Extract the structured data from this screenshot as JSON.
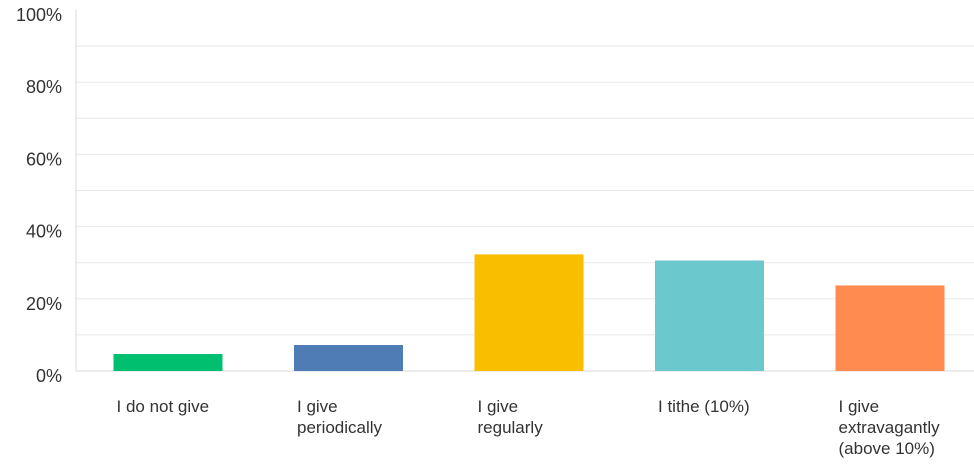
{
  "chart_data": {
    "type": "bar",
    "title": "",
    "xlabel": "",
    "ylabel": "",
    "ylim": [
      0,
      100
    ],
    "y_ticks": [
      "0%",
      "20%",
      "40%",
      "60%",
      "80%",
      "100%"
    ],
    "y_tick_values": [
      0,
      20,
      40,
      60,
      80,
      100
    ],
    "grid": "horizontal",
    "categories": [
      "I do not give",
      "I give periodically",
      "I give regularly",
      "I tithe (10%)",
      "I give extravagantly (above 10%)"
    ],
    "category_lines": [
      [
        "I do not give"
      ],
      [
        "I give",
        "periodically"
      ],
      [
        "I give",
        "regularly"
      ],
      [
        "I tithe (10%)"
      ],
      [
        "I give",
        "extravagantly",
        "(above 10%)"
      ]
    ],
    "values": [
      4.7,
      7.2,
      32.3,
      30.6,
      23.7
    ],
    "colors": [
      "#00bf6f",
      "#507cb6",
      "#f9be00",
      "#6bc8cd",
      "#ff8b4f"
    ]
  }
}
